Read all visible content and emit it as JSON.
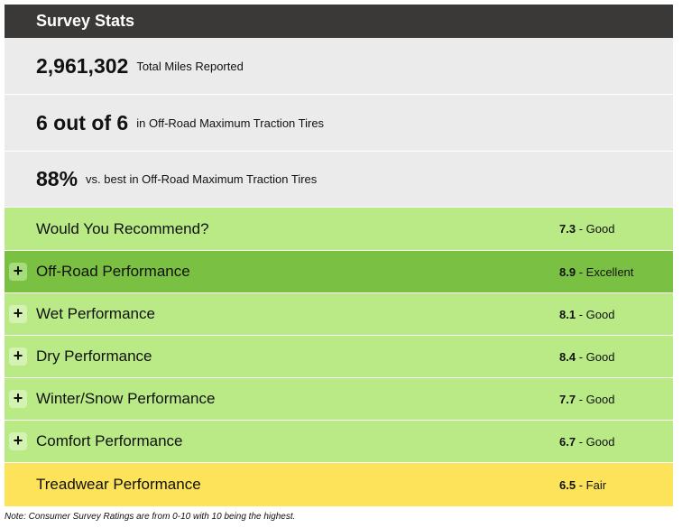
{
  "header": {
    "title": "Survey Stats"
  },
  "stats": [
    {
      "value": "2,961,302",
      "label": "Total Miles Reported"
    },
    {
      "value": "6 out of 6",
      "label": "in Off-Road Maximum Traction Tires"
    },
    {
      "value": "88%",
      "label": "vs. best in Off-Road Maximum Traction Tires"
    }
  ],
  "ratings": [
    {
      "label": "Would You Recommend?",
      "score": "7.3",
      "rating": "- Good"
    },
    {
      "label": "Off-Road Performance",
      "score": "8.9",
      "rating": "- Excellent"
    },
    {
      "label": "Wet Performance",
      "score": "8.1",
      "rating": "- Good"
    },
    {
      "label": "Dry Performance",
      "score": "8.4",
      "rating": "- Good"
    },
    {
      "label": "Winter/Snow Performance",
      "score": "7.7",
      "rating": "- Good"
    },
    {
      "label": "Comfort Performance",
      "score": "6.7",
      "rating": "- Good"
    },
    {
      "label": "Treadwear Performance",
      "score": "6.5",
      "rating": "- Fair"
    }
  ],
  "note": "Note: Consumer Survey Ratings are from 0-10 with 10 being the highest."
}
